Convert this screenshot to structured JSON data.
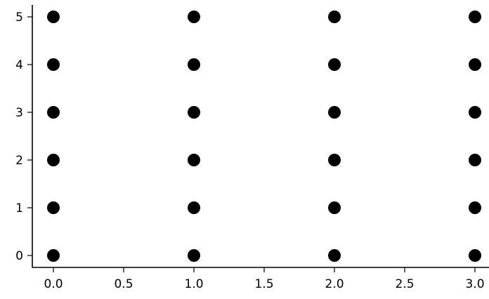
{
  "chart_data": {
    "type": "scatter",
    "title": "",
    "xlabel": "",
    "ylabel": "",
    "xlim": [
      -0.15,
      3.1
    ],
    "ylim": [
      -0.25,
      5.25
    ],
    "grid": false,
    "legend": "none",
    "marker_color": "#000000",
    "x_ticks": [
      {
        "value": 0.0,
        "label": "0.0"
      },
      {
        "value": 0.5,
        "label": "0.5"
      },
      {
        "value": 1.0,
        "label": "1.0"
      },
      {
        "value": 1.5,
        "label": "1.5"
      },
      {
        "value": 2.0,
        "label": "2.0"
      },
      {
        "value": 2.5,
        "label": "2.5"
      },
      {
        "value": 3.0,
        "label": "3.0"
      }
    ],
    "y_ticks": [
      {
        "value": 0,
        "label": "0"
      },
      {
        "value": 1,
        "label": "1"
      },
      {
        "value": 2,
        "label": "2"
      },
      {
        "value": 3,
        "label": "3"
      },
      {
        "value": 4,
        "label": "4"
      },
      {
        "value": 5,
        "label": "5"
      }
    ],
    "series": [
      {
        "points": [
          {
            "x": 0,
            "y": 0
          },
          {
            "x": 0,
            "y": 1
          },
          {
            "x": 0,
            "y": 2
          },
          {
            "x": 0,
            "y": 3
          },
          {
            "x": 0,
            "y": 4
          },
          {
            "x": 0,
            "y": 5
          },
          {
            "x": 1,
            "y": 0
          },
          {
            "x": 1,
            "y": 1
          },
          {
            "x": 1,
            "y": 2
          },
          {
            "x": 1,
            "y": 3
          },
          {
            "x": 1,
            "y": 4
          },
          {
            "x": 1,
            "y": 5
          },
          {
            "x": 2,
            "y": 0
          },
          {
            "x": 2,
            "y": 1
          },
          {
            "x": 2,
            "y": 2
          },
          {
            "x": 2,
            "y": 3
          },
          {
            "x": 2,
            "y": 4
          },
          {
            "x": 2,
            "y": 5
          },
          {
            "x": 3,
            "y": 0
          },
          {
            "x": 3,
            "y": 1
          },
          {
            "x": 3,
            "y": 2
          },
          {
            "x": 3,
            "y": 3
          },
          {
            "x": 3,
            "y": 4
          },
          {
            "x": 3,
            "y": 5
          }
        ]
      }
    ]
  }
}
